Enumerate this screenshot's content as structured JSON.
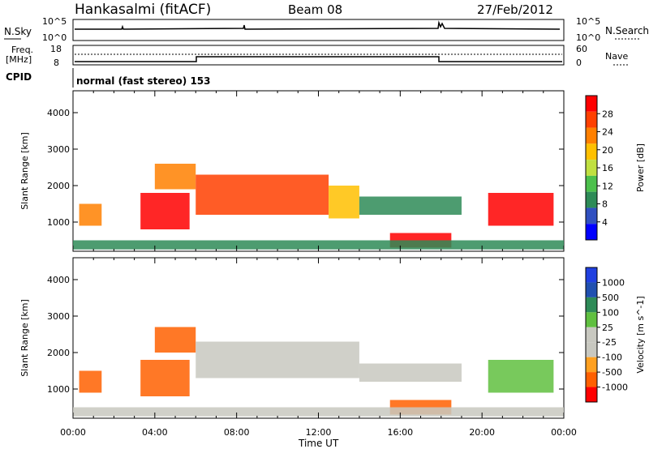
{
  "header": {
    "station": "Hankasalmi (fitACF)",
    "beam": "Beam 08",
    "date": "27/Feb/2012"
  },
  "nsky_panel": {
    "left_label": "N.Sky",
    "right_label": "N.Search",
    "left_ticks": [
      "10^5",
      "10^0"
    ],
    "right_ticks": [
      "10^5",
      "10^0"
    ]
  },
  "freq_panel": {
    "left_label_1": "Freq.",
    "left_label_2": "[MHz]",
    "right_label": "Nave",
    "left_ticks": [
      "18",
      "8"
    ],
    "right_ticks": [
      "60",
      "0"
    ]
  },
  "cpid": {
    "label": "CPID",
    "program": "normal (fast stereo) 153"
  },
  "colors": {
    "power_scale": [
      "#0000ff",
      "#3050c0",
      "#2e8b57",
      "#4cc04c",
      "#c0e040",
      "#ffc000",
      "#ff8000",
      "#ff4000",
      "#ff0000"
    ],
    "velocity_scale": [
      "#ff0000",
      "#ff6000",
      "#ffa020",
      "#c8c8c0",
      "#c8c8c0",
      "#60c040",
      "#2e8b57",
      "#2050b0",
      "#2040e0"
    ],
    "ground_scatter": "#c8c8c0"
  },
  "chart_data": [
    {
      "type": "heatmap",
      "title": "Power",
      "ylabel": "Slant Range [km]",
      "xlabel": "Time UT",
      "x_ticks": [
        "00:00",
        "04:00",
        "08:00",
        "12:00",
        "16:00",
        "20:00",
        "00:00"
      ],
      "y_ticks": [
        "1000",
        "2000",
        "3000",
        "4000"
      ],
      "ylim": [
        200,
        4600
      ],
      "xlim_hours": [
        0,
        24
      ],
      "colorbar_label": "Power [dB]",
      "colorbar_ticks": [
        "4",
        "8",
        "12",
        "16",
        "20",
        "24",
        "28"
      ],
      "regions": [
        {
          "t0": 0.3,
          "t1": 1.4,
          "r0": 900,
          "r1": 1500,
          "level": 20
        },
        {
          "t0": 3.3,
          "t1": 5.7,
          "r0": 800,
          "r1": 1800,
          "level": 28
        },
        {
          "t0": 4.0,
          "t1": 6.0,
          "r0": 1900,
          "r1": 2600,
          "level": 20
        },
        {
          "t0": 6.0,
          "t1": 12.5,
          "r0": 1200,
          "r1": 2300,
          "level": 24
        },
        {
          "t0": 12.5,
          "t1": 14.0,
          "r0": 1100,
          "r1": 2000,
          "level": 16
        },
        {
          "t0": 14.0,
          "t1": 19.0,
          "r0": 1200,
          "r1": 1700,
          "level": 8
        },
        {
          "t0": 15.5,
          "t1": 18.5,
          "r0": 300,
          "r1": 700,
          "level": 28
        },
        {
          "t0": 20.3,
          "t1": 23.5,
          "r0": 900,
          "r1": 1800,
          "level": 28
        },
        {
          "t0": 0.0,
          "t1": 24.0,
          "r0": 250,
          "r1": 500,
          "level": 8
        }
      ]
    },
    {
      "type": "heatmap",
      "title": "Velocity",
      "ylabel": "Slant Range [km]",
      "xlabel": "Time UT",
      "x_ticks": [
        "00:00",
        "04:00",
        "08:00",
        "12:00",
        "16:00",
        "20:00",
        "00:00"
      ],
      "y_ticks": [
        "1000",
        "2000",
        "3000",
        "4000"
      ],
      "ylim": [
        200,
        4600
      ],
      "xlim_hours": [
        0,
        24
      ],
      "colorbar_label": "Velocity [m s^-1]",
      "colorbar_ticks": [
        "1000",
        "500",
        "100",
        "25",
        "-25",
        "-100",
        "-500",
        "-1000"
      ],
      "regions": [
        {
          "t0": 0.3,
          "t1": 1.4,
          "r0": 900,
          "r1": 1500,
          "level": -100
        },
        {
          "t0": 3.3,
          "t1": 5.7,
          "r0": 800,
          "r1": 1800,
          "level": -100
        },
        {
          "t0": 4.0,
          "t1": 6.0,
          "r0": 2000,
          "r1": 2700,
          "level": -100
        },
        {
          "t0": 6.0,
          "t1": 14.0,
          "r0": 1300,
          "r1": 2300,
          "level": 0
        },
        {
          "t0": 14.0,
          "t1": 19.0,
          "r0": 1200,
          "r1": 1700,
          "level": 0
        },
        {
          "t0": 15.5,
          "t1": 18.5,
          "r0": 300,
          "r1": 700,
          "level": -100
        },
        {
          "t0": 20.3,
          "t1": 23.5,
          "r0": 900,
          "r1": 1800,
          "level": 100
        },
        {
          "t0": 0.0,
          "t1": 24.0,
          "r0": 250,
          "r1": 500,
          "level": 0
        }
      ]
    }
  ]
}
